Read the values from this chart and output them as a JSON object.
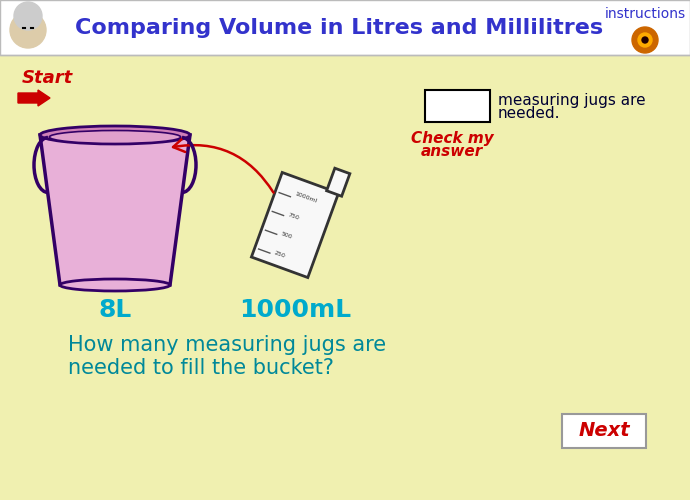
{
  "title": "Comparing Volume in Litres and Millilitres",
  "header_bg": "#ffffff",
  "body_bg": "#f0f0b0",
  "title_color": "#3333cc",
  "instructions_color": "#3333cc",
  "start_color": "#cc0000",
  "arrow_color": "#cc0000",
  "bucket_fill": "#e8b0d8",
  "bucket_stroke": "#330066",
  "jug_stroke": "#333333",
  "jug_fill": "#f8f8f8",
  "label_color": "#00aacc",
  "question_color": "#008899",
  "check_color": "#cc0000",
  "next_color": "#cc0000",
  "next_bg": "#ffffff",
  "answer_box_bg": "#ffffff",
  "answer_box_stroke": "#000000",
  "needed_text_color": "#000033",
  "bucket_label": "8L",
  "jug_label": "1000mL",
  "question_line1": "How many measuring jugs are",
  "question_line2": "needed to fill the bucket?",
  "start_text": "Start",
  "instructions_text": "instructions",
  "check_line1": "Check my",
  "check_line2": "answer",
  "needed_line1": "measuring jugs are",
  "needed_line2": "needed.",
  "next_text": "Next",
  "scale_labels": [
    "1000ml",
    "750",
    "500",
    "250"
  ]
}
